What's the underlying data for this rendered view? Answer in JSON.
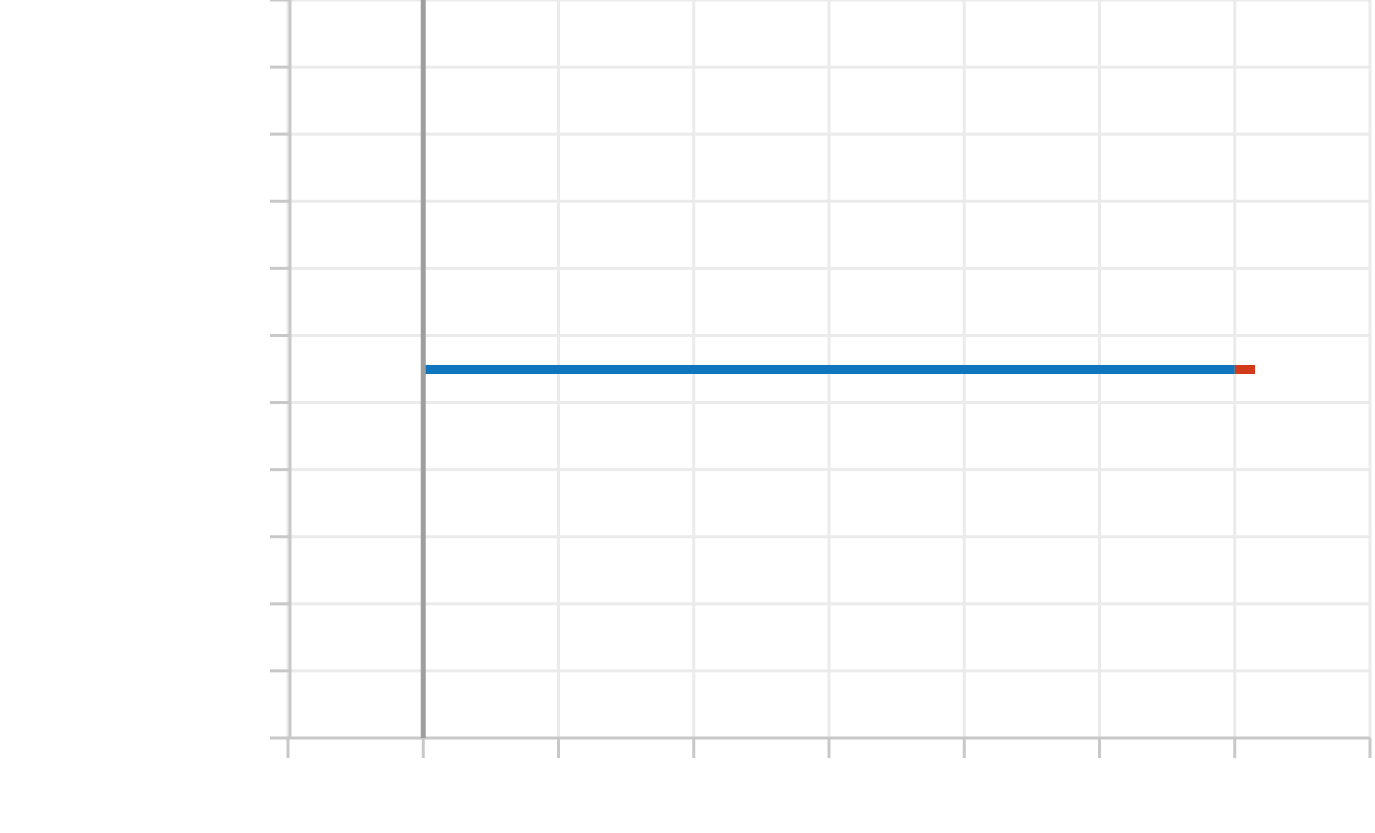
{
  "chart_data": {
    "type": "bar",
    "orientation": "horizontal",
    "stacked": true,
    "title": "",
    "xlabel": "",
    "ylabel": "",
    "xlim": [
      -1,
      7
    ],
    "x_gridlines": [
      -1,
      0,
      1,
      2,
      3,
      4,
      5,
      6,
      7
    ],
    "y_gridline_count": 11,
    "categories": [
      ""
    ],
    "series": [
      {
        "values": [
          6.0
        ],
        "color": "#0f75bc"
      },
      {
        "values": [
          0.15
        ],
        "color": "#d13b19"
      }
    ],
    "zero_line": true,
    "grid": true,
    "legend": "none"
  }
}
